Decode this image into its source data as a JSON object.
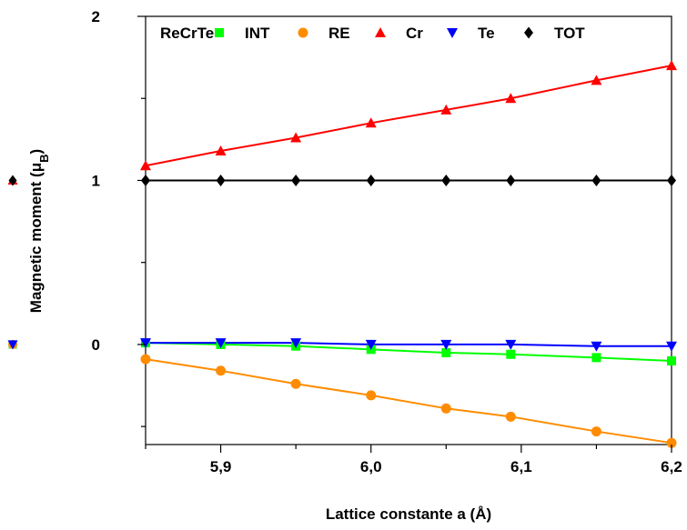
{
  "chart_data": {
    "type": "line",
    "legend_title": "ReCrTe",
    "xlabel": "Lattice constante a (Å)",
    "ylabel": "Magnetic moment (μB)",
    "ylabel_prefix": "Magnetic moment (μ",
    "ylabel_sub": "B",
    "ylabel_suffix": ")",
    "xlim": [
      5.85,
      6.2
    ],
    "ylim": [
      -0.61,
      2
    ],
    "x_ticks": [
      5.9,
      6.0,
      6.1,
      6.2
    ],
    "x_tick_labels": [
      "5,9",
      "6,0",
      "6,1",
      "6,2"
    ],
    "x_minor_ticks": [
      5.85,
      5.95,
      6.05,
      6.15
    ],
    "y_ticks": [
      0,
      1,
      2
    ],
    "y_tick_labels": [
      "0",
      "1",
      "2"
    ],
    "y_minor_ticks": [
      -0.5,
      0.5,
      1.5
    ],
    "x": [
      5.85,
      5.9,
      5.95,
      6.0,
      6.05,
      6.093,
      6.15,
      6.2
    ],
    "grid": false,
    "legend_position": "top",
    "series": [
      {
        "name": "INT",
        "color": "#00ff00",
        "marker": "square",
        "values": [
          0.01,
          0.0,
          -0.01,
          -0.03,
          -0.05,
          -0.06,
          -0.08,
          -0.1
        ]
      },
      {
        "name": "RE",
        "color": "#ff8c00",
        "marker": "circle",
        "values": [
          -0.09,
          -0.16,
          -0.24,
          -0.31,
          -0.39,
          -0.44,
          -0.53,
          -0.6
        ]
      },
      {
        "name": "Cr",
        "color": "#ff0000",
        "marker": "triangle-up",
        "values": [
          1.09,
          1.18,
          1.26,
          1.35,
          1.43,
          1.5,
          1.61,
          1.7
        ]
      },
      {
        "name": "Te",
        "color": "#0000ff",
        "marker": "triangle-down",
        "values": [
          0.01,
          0.01,
          0.01,
          0.0,
          0.0,
          0.0,
          -0.01,
          -0.01
        ]
      },
      {
        "name": "TOT",
        "color": "#000000",
        "marker": "diamond",
        "values": [
          1.0,
          1.0,
          1.0,
          1.0,
          1.0,
          1.0,
          1.0,
          1.0
        ]
      }
    ]
  }
}
